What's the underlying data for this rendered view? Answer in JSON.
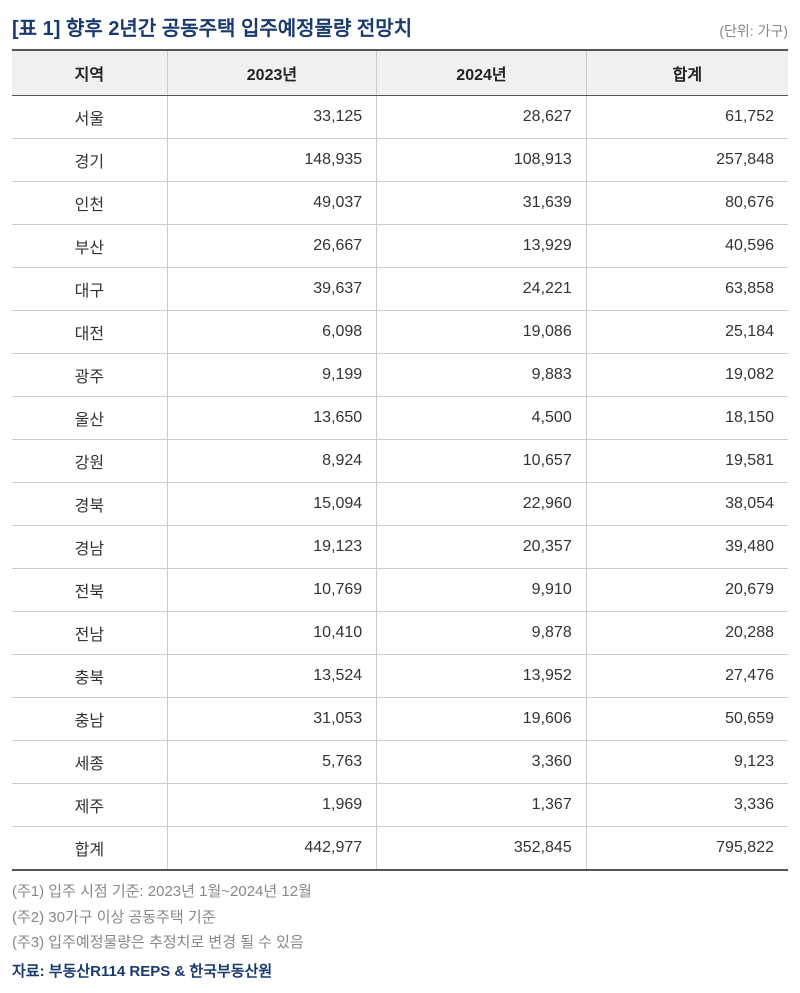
{
  "title": "[표 1] 향후 2년간 공동주택 입주예정물량 전망치",
  "unit": "(단위: 가구)",
  "columns": [
    "지역",
    "2023년",
    "2024년",
    "합계"
  ],
  "rows": [
    {
      "region": "서울",
      "y2023": "33,125",
      "y2024": "28,627",
      "sum": "61,752",
      "sep": false
    },
    {
      "region": "경기",
      "y2023": "148,935",
      "y2024": "108,913",
      "sum": "257,848",
      "sep": false
    },
    {
      "region": "인천",
      "y2023": "49,037",
      "y2024": "31,639",
      "sum": "80,676",
      "sep": false
    },
    {
      "region": "부산",
      "y2023": "26,667",
      "y2024": "13,929",
      "sum": "40,596",
      "sep": true
    },
    {
      "region": "대구",
      "y2023": "39,637",
      "y2024": "24,221",
      "sum": "63,858",
      "sep": false
    },
    {
      "region": "대전",
      "y2023": "6,098",
      "y2024": "19,086",
      "sum": "25,184",
      "sep": true
    },
    {
      "region": "광주",
      "y2023": "9,199",
      "y2024": "9,883",
      "sum": "19,082",
      "sep": false
    },
    {
      "region": "울산",
      "y2023": "13,650",
      "y2024": "4,500",
      "sum": "18,150",
      "sep": true
    },
    {
      "region": "강원",
      "y2023": "8,924",
      "y2024": "10,657",
      "sum": "19,581",
      "sep": false
    },
    {
      "region": "경북",
      "y2023": "15,094",
      "y2024": "22,960",
      "sum": "38,054",
      "sep": false
    },
    {
      "region": "경남",
      "y2023": "19,123",
      "y2024": "20,357",
      "sum": "39,480",
      "sep": false
    },
    {
      "region": "전북",
      "y2023": "10,769",
      "y2024": "9,910",
      "sum": "20,679",
      "sep": false
    },
    {
      "region": "전남",
      "y2023": "10,410",
      "y2024": "9,878",
      "sum": "20,288",
      "sep": false
    },
    {
      "region": "충북",
      "y2023": "13,524",
      "y2024": "13,952",
      "sum": "27,476",
      "sep": false
    },
    {
      "region": "충남",
      "y2023": "31,053",
      "y2024": "19,606",
      "sum": "50,659",
      "sep": false
    },
    {
      "region": "세종",
      "y2023": "5,763",
      "y2024": "3,360",
      "sum": "9,123",
      "sep": false
    },
    {
      "region": "제주",
      "y2023": "1,969",
      "y2024": "1,367",
      "sum": "3,336",
      "sep": false
    }
  ],
  "total": {
    "region": "합계",
    "y2023": "442,977",
    "y2024": "352,845",
    "sum": "795,822"
  },
  "notes": [
    "(주1) 입주 시점 기준: 2023년 1월~2024년 12월",
    "(주2) 30가구 이상 공동주택 기준",
    "(주3) 입주예정물량은 추정치로 변경 될 수 있음"
  ],
  "source": "자료: 부동산R114 REPS & 한국부동산원",
  "style": {
    "title_color": "#1a3a6e",
    "unit_color": "#888888",
    "header_bg": "#f0f0f0",
    "border_strong": "#555555",
    "border_mid": "#888888",
    "border_light": "#cccccc",
    "note_color": "#888888",
    "source_color": "#1a3a6e"
  }
}
